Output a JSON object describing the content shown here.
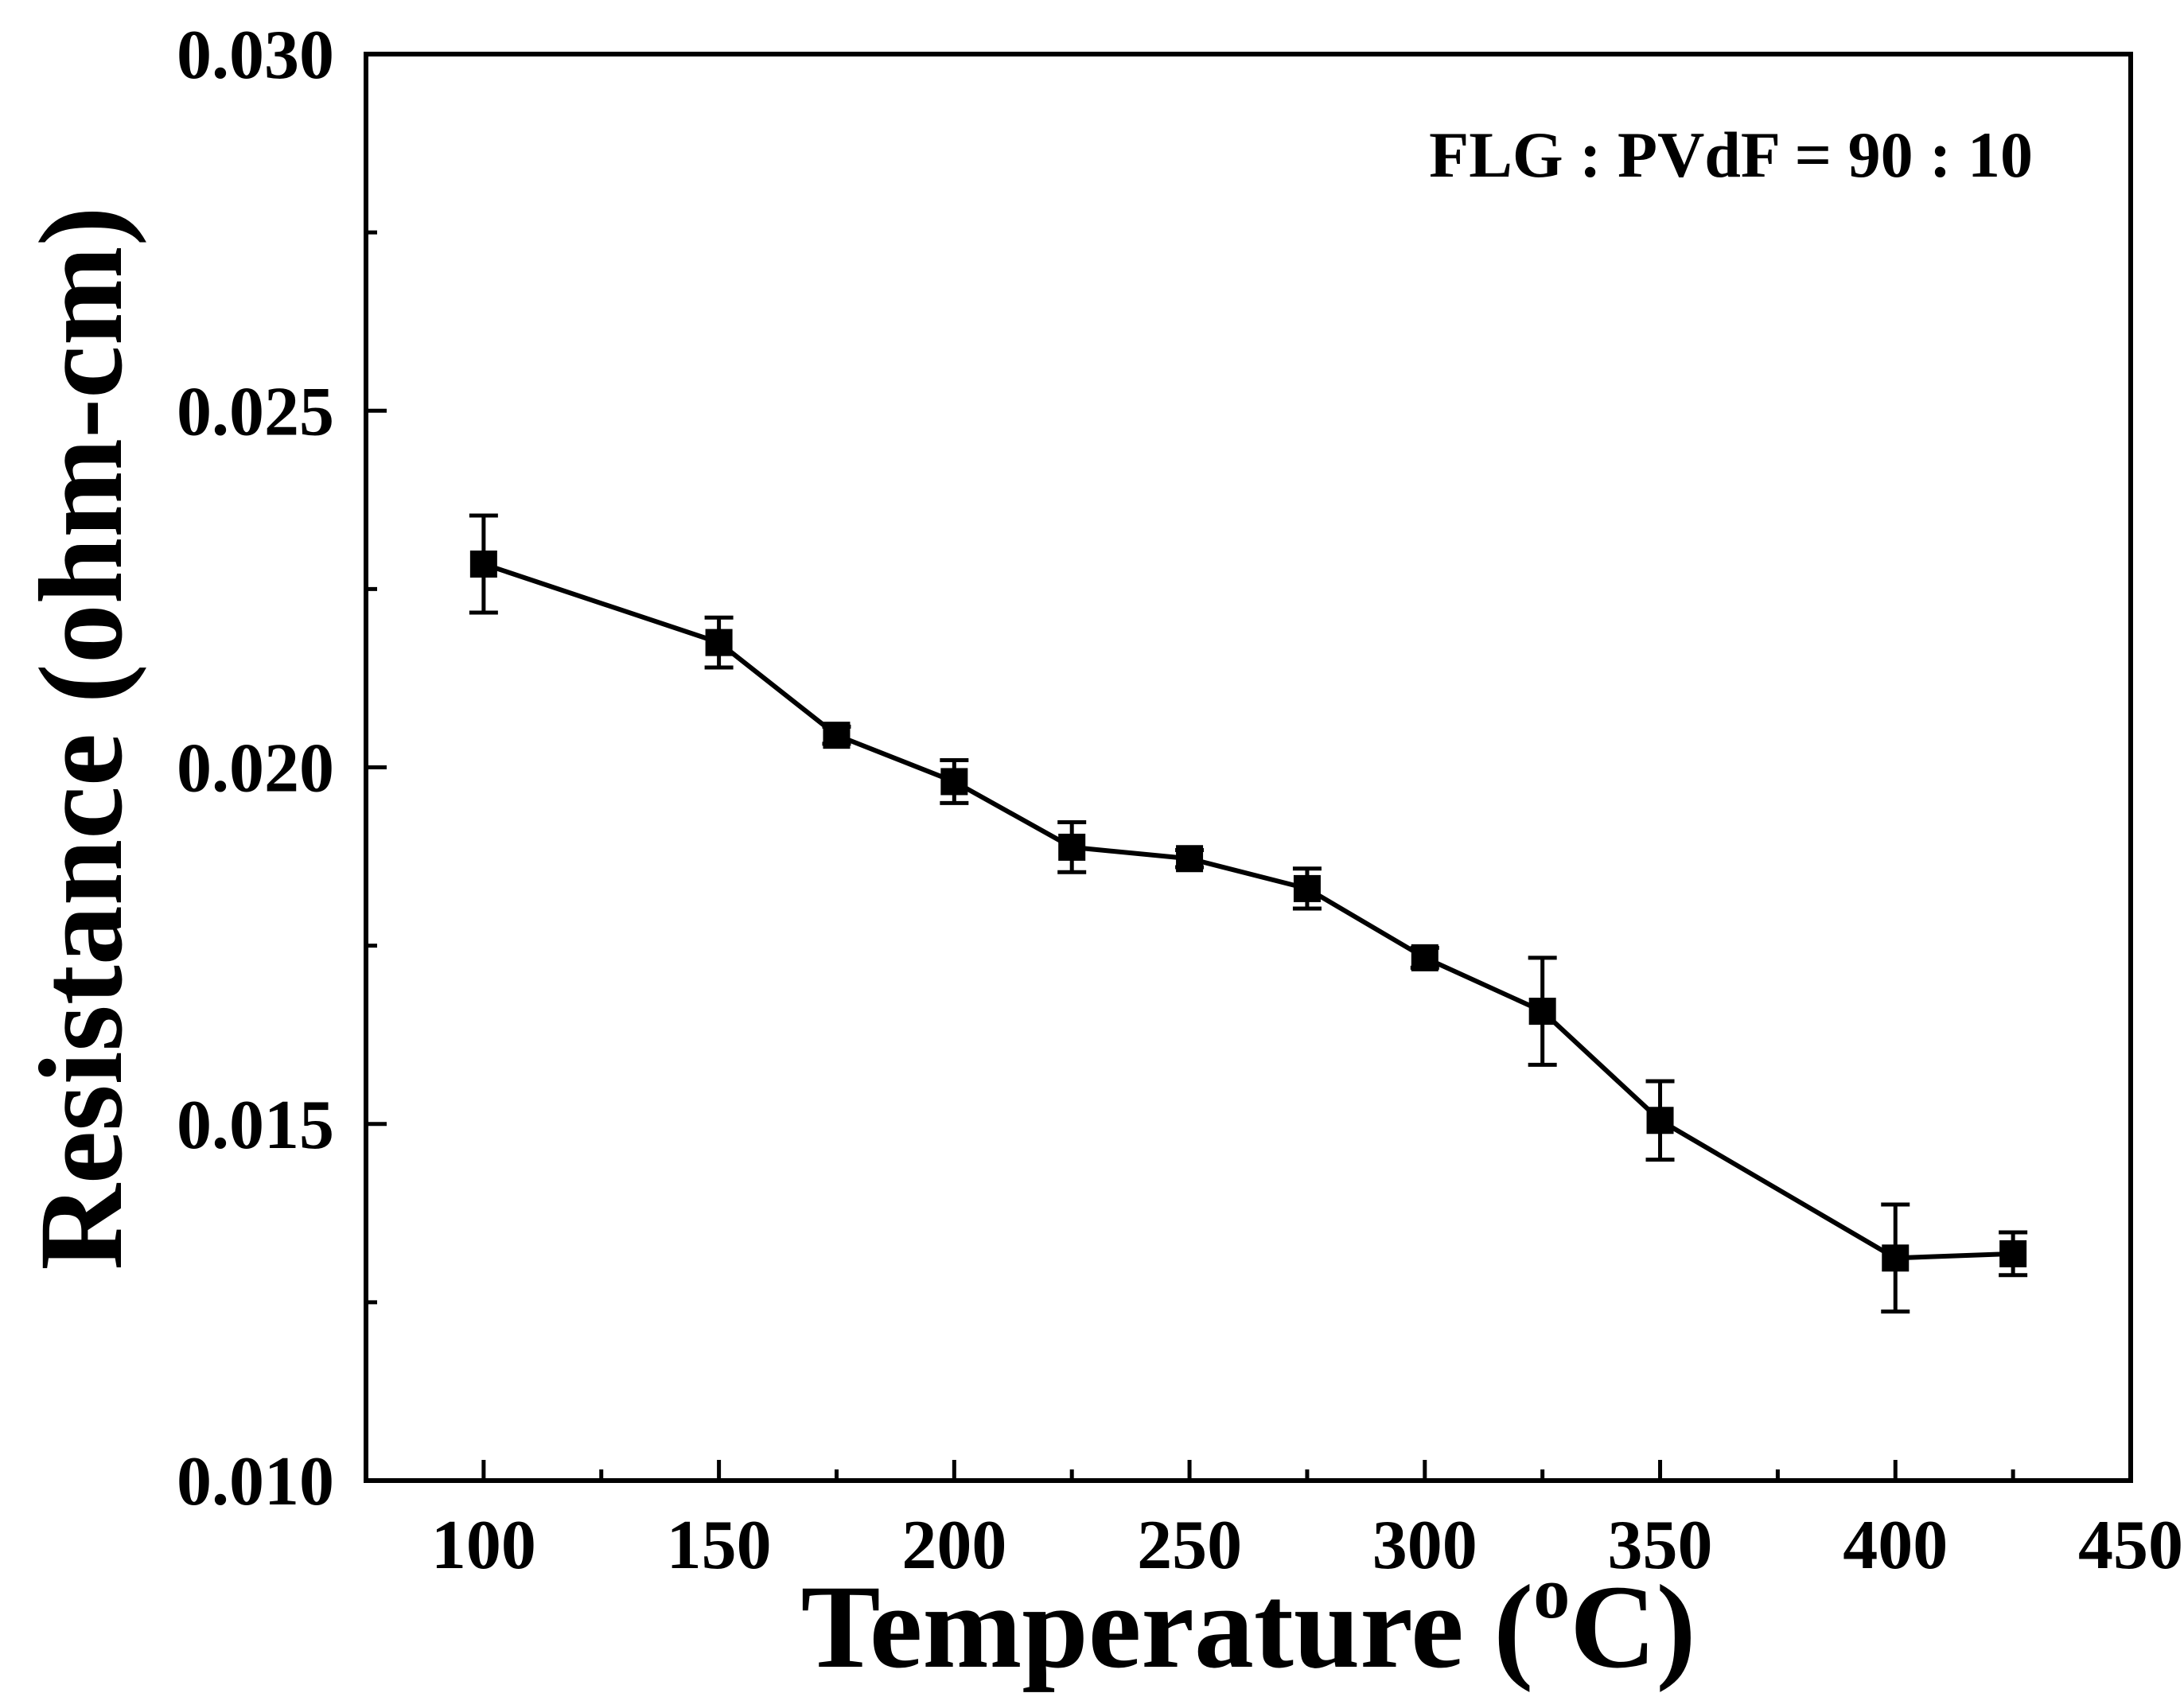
{
  "chart_data": {
    "type": "line",
    "title": "",
    "annotation": "FLG : PVdF = 90 : 10",
    "xlabel": "Temperature (",
    "xlabel_sup": "o",
    "xlabel_suffix": "C)",
    "ylabel": "Resistance (ohm-cm)",
    "xlim": [
      75,
      450
    ],
    "ylim": [
      0.01,
      0.03
    ],
    "xticks": [
      "100",
      "150",
      "200",
      "250",
      "300",
      "350",
      "400",
      "450"
    ],
    "yticks": [
      "0.010",
      "0.015",
      "0.020",
      "0.025",
      "0.030"
    ],
    "series": [
      {
        "name": "FLG : PVdF = 90 : 10",
        "marker": "square",
        "color": "#000000",
        "points": [
          {
            "x": 100,
            "y": 0.02285,
            "err": 0.00068
          },
          {
            "x": 150,
            "y": 0.02175,
            "err": 0.00035
          },
          {
            "x": 175,
            "y": 0.02045,
            "err": 0.00012
          },
          {
            "x": 200,
            "y": 0.0198,
            "err": 0.0003
          },
          {
            "x": 225,
            "y": 0.01888,
            "err": 0.00035
          },
          {
            "x": 250,
            "y": 0.01872,
            "err": 0.00012
          },
          {
            "x": 275,
            "y": 0.0183,
            "err": 0.00028
          },
          {
            "x": 300,
            "y": 0.01733,
            "err": 0.00014
          },
          {
            "x": 325,
            "y": 0.01658,
            "err": 0.00075
          },
          {
            "x": 350,
            "y": 0.01505,
            "err": 0.00055
          },
          {
            "x": 400,
            "y": 0.01312,
            "err": 0.00075
          },
          {
            "x": 425,
            "y": 0.01318,
            "err": 0.0003
          }
        ]
      }
    ]
  }
}
